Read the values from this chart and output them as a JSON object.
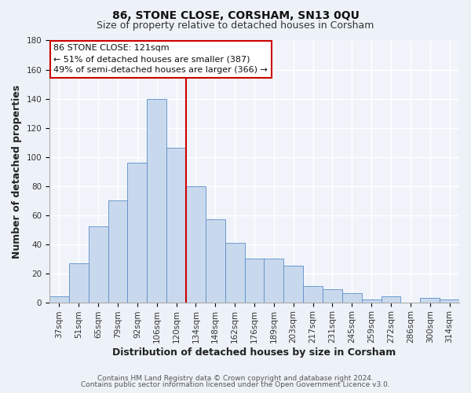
{
  "title": "86, STONE CLOSE, CORSHAM, SN13 0QU",
  "subtitle": "Size of property relative to detached houses in Corsham",
  "xlabel": "Distribution of detached houses by size in Corsham",
  "ylabel": "Number of detached properties",
  "bar_labels": [
    "37sqm",
    "51sqm",
    "65sqm",
    "79sqm",
    "92sqm",
    "106sqm",
    "120sqm",
    "134sqm",
    "148sqm",
    "162sqm",
    "176sqm",
    "189sqm",
    "203sqm",
    "217sqm",
    "231sqm",
    "245sqm",
    "259sqm",
    "272sqm",
    "286sqm",
    "300sqm",
    "314sqm"
  ],
  "bar_values": [
    4,
    27,
    52,
    70,
    96,
    140,
    106,
    80,
    57,
    41,
    30,
    30,
    25,
    11,
    9,
    6,
    2,
    4,
    0,
    3,
    2
  ],
  "bar_color": "#c9d9ed",
  "bar_edge_color": "#5b8cc8",
  "ylim": [
    0,
    180
  ],
  "yticks": [
    0,
    20,
    40,
    60,
    80,
    100,
    120,
    140,
    160,
    180
  ],
  "vline_index": 6,
  "vline_color": "#cc0000",
  "ann_line1": "86 STONE CLOSE: 121sqm",
  "ann_line2": "← 51% of detached houses are smaller (387)",
  "ann_line3": "49% of semi-detached houses are larger (366) →",
  "footer_line1": "Contains HM Land Registry data © Crown copyright and database right 2024.",
  "footer_line2": "Contains public sector information licensed under the Open Government Licence v3.0.",
  "bg_color": "#edf2f8",
  "plot_bg_color": "#f0f4fa",
  "grid_color": "#ffffff",
  "title_fontsize": 10,
  "subtitle_fontsize": 9,
  "axis_label_fontsize": 9,
  "tick_fontsize": 7.5,
  "footer_fontsize": 6.5
}
